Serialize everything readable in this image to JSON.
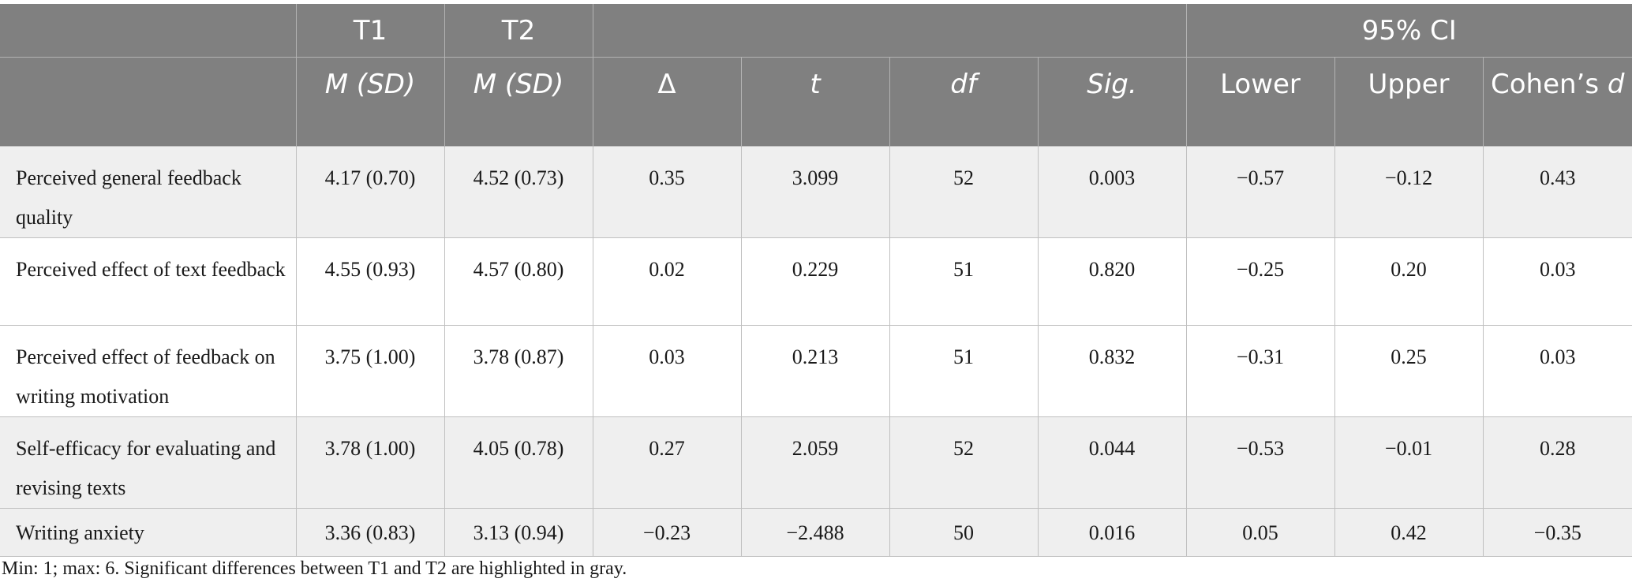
{
  "table": {
    "header_top": [
      "",
      "T1",
      "T2",
      "",
      "95% CI"
    ],
    "header_sub": [
      "",
      "M (SD)",
      "M (SD)",
      "Δ",
      "t",
      "df",
      "Sig.",
      "Lower",
      "Upper",
      "Cohen’s d"
    ],
    "rows": [
      {
        "label": "Perceived general feedback quality",
        "t1": "4.17 (0.70)",
        "t2": "4.52 (0.73)",
        "delta": "0.35",
        "t": "3.099",
        "df": "52",
        "sig": "0.003",
        "lower": "−0.57",
        "upper": "−0.12",
        "d": "0.43",
        "highlight": true
      },
      {
        "label": "Perceived effect of text feedback",
        "t1": "4.55 (0.93)",
        "t2": "4.57 (0.80)",
        "delta": "0.02",
        "t": "0.229",
        "df": "51",
        "sig": "0.820",
        "lower": "−0.25",
        "upper": "0.20",
        "d": "0.03",
        "highlight": false
      },
      {
        "label": "Perceived effect of feedback on writing motivation",
        "t1": "3.75 (1.00)",
        "t2": "3.78 (0.87)",
        "delta": "0.03",
        "t": "0.213",
        "df": "51",
        "sig": "0.832",
        "lower": "−0.31",
        "upper": "0.25",
        "d": "0.03",
        "highlight": false
      },
      {
        "label": "Self-efficacy for evaluating and revising texts",
        "t1": "3.78 (1.00)",
        "t2": "4.05 (0.78)",
        "delta": "0.27",
        "t": "2.059",
        "df": "52",
        "sig": "0.044",
        "lower": "−0.53",
        "upper": "−0.01",
        "d": "0.28",
        "highlight": true
      },
      {
        "label": "Writing anxiety",
        "t1": "3.36 (0.83)",
        "t2": "3.13 (0.94)",
        "delta": "−0.23",
        "t": "−2.488",
        "df": "50",
        "sig": "0.016",
        "lower": "0.05",
        "upper": "0.42",
        "d": "−0.35",
        "highlight": true
      }
    ]
  },
  "footnote": "Min: 1; max: 6. Significant differences between T1 and T2 are highlighted in gray.",
  "colors": {
    "header_bg": "#808080",
    "highlight_row": "#efefef",
    "plain_row": "#ffffff"
  }
}
